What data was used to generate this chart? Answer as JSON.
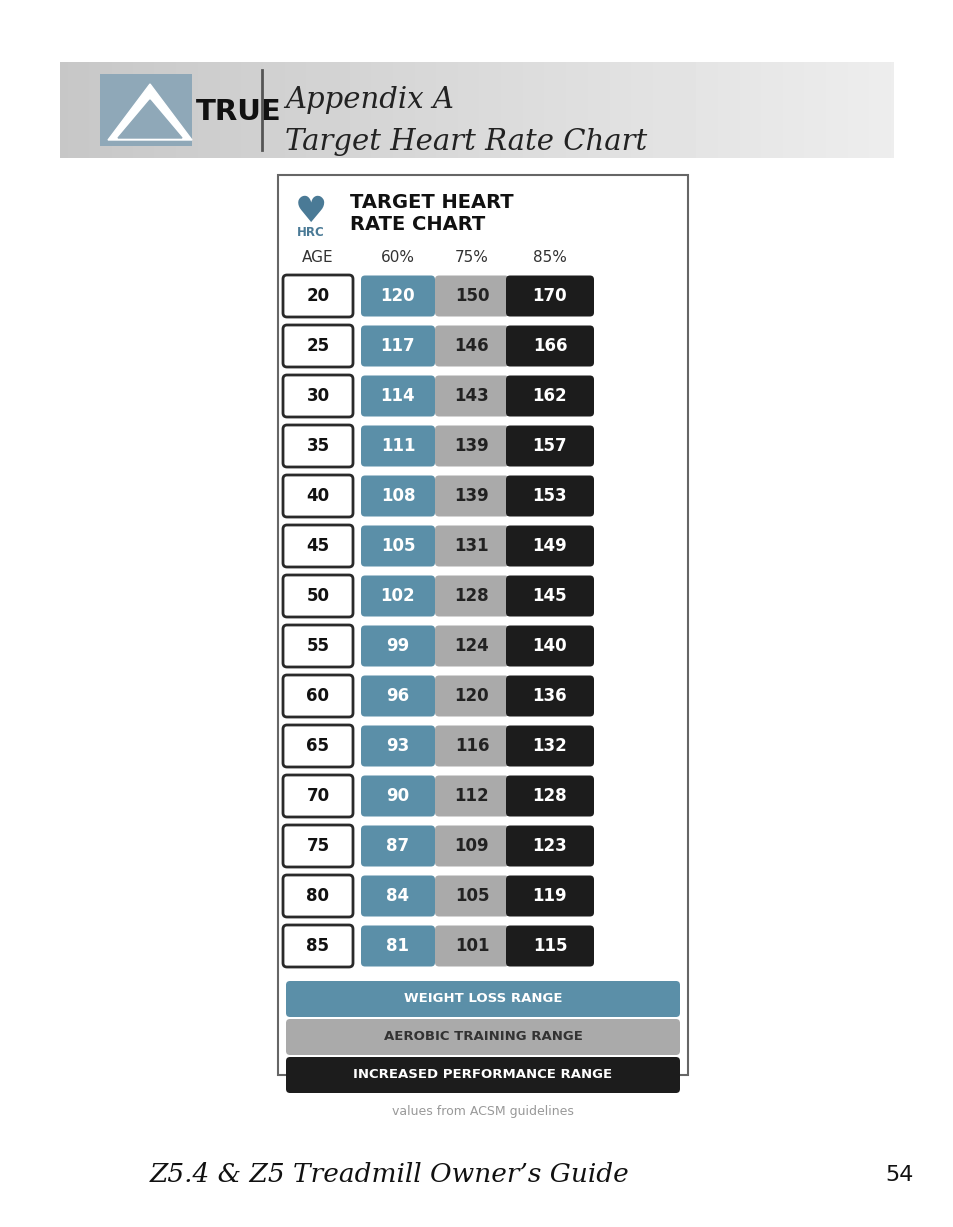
{
  "ages": [
    20,
    25,
    30,
    35,
    40,
    45,
    50,
    55,
    60,
    65,
    70,
    75,
    80,
    85
  ],
  "pct60": [
    120,
    117,
    114,
    111,
    108,
    105,
    102,
    99,
    96,
    93,
    90,
    87,
    84,
    81
  ],
  "pct75": [
    150,
    146,
    143,
    139,
    139,
    131,
    128,
    124,
    120,
    116,
    112,
    109,
    105,
    101
  ],
  "pct85": [
    170,
    166,
    162,
    157,
    153,
    149,
    145,
    140,
    136,
    132,
    128,
    123,
    119,
    115
  ],
  "color_60": "#5b8fa8",
  "color_75": "#aaaaaa",
  "color_85": "#1c1c1c",
  "legend_60_label": "WEIGHT LOSS RANGE",
  "legend_75_label": "AEROBIC TRAINING RANGE",
  "legend_85_label": "INCREASED PERFORMANCE RANGE",
  "title_line1": "Appendix A",
  "title_line2": "Target Heart Rate Chart",
  "footer_text": "Z5.4 & Z5 Treadmill Owner’s Guide",
  "page_num": "54",
  "acsm_note": "values from ACSM guidelines",
  "chart_title1": "TARGET HEART",
  "chart_title2": "RATE CHART",
  "col_age": "AGE",
  "col_60": "60%",
  "col_75": "75%",
  "col_85": "85%"
}
